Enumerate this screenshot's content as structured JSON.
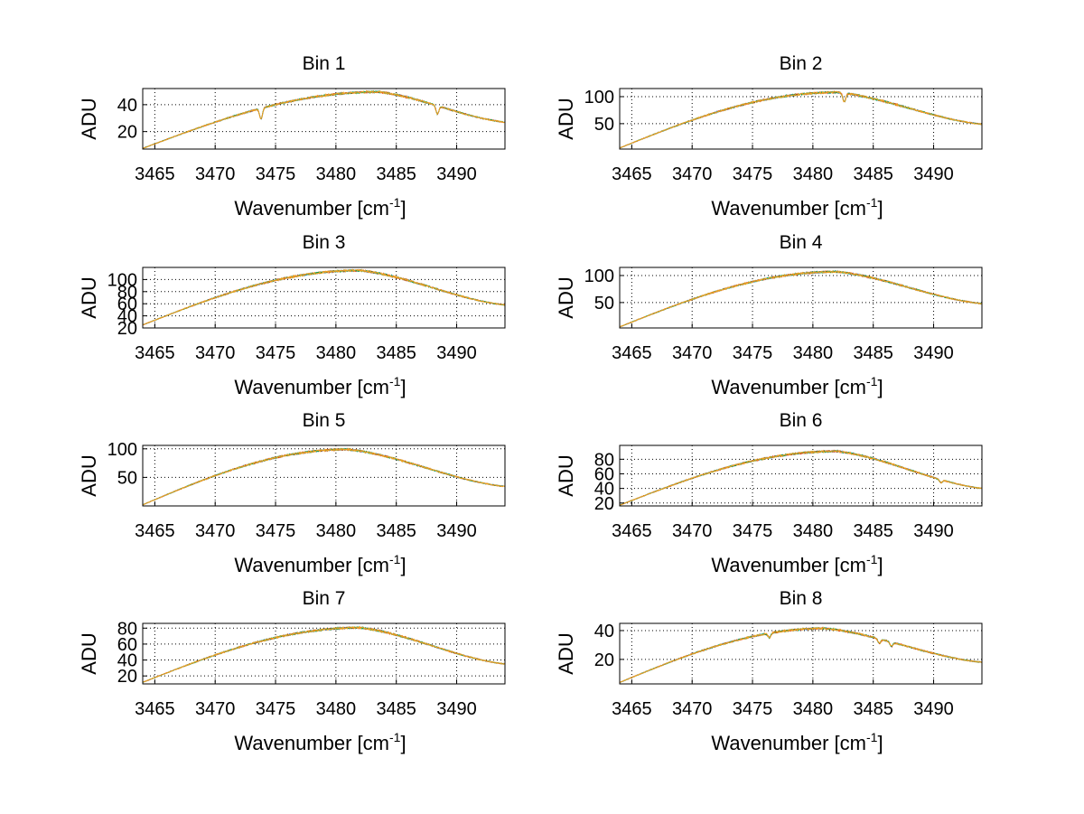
{
  "figure": {
    "background": "#ffffff",
    "series_colors": [
      "#1f7fd6",
      "#e32400",
      "#00a651",
      "#f0a020"
    ]
  },
  "chart_data": [
    {
      "type": "line",
      "title": "Bin 1",
      "xlabel": "Wavenumber [cm",
      "xlabel_sup": "-1",
      "xlabel_close": "]",
      "ylabel": "ADU",
      "xlim": [
        3464,
        3494
      ],
      "ylim": [
        7,
        52
      ],
      "xticks": [
        "3465",
        "3470",
        "3475",
        "3480",
        "3485",
        "3490"
      ],
      "xtick_values": [
        3465,
        3470,
        3475,
        3480,
        3485,
        3490
      ],
      "yticks": [
        "20",
        "40"
      ],
      "ytick_values": [
        20,
        40
      ],
      "grid": true,
      "profile": {
        "start": 7.5,
        "peak": 49.5,
        "peak_x": 3483.5,
        "end": 27
      },
      "dips": [
        {
          "x": 3473.8,
          "depth": 8
        },
        {
          "x": 3488.4,
          "depth": 6
        }
      ]
    },
    {
      "type": "line",
      "title": "Bin 2",
      "xlabel": "Wavenumber [cm",
      "xlabel_sup": "-1",
      "xlabel_close": "]",
      "ylabel": "ADU",
      "xlim": [
        3464,
        3494
      ],
      "ylim": [
        3,
        115
      ],
      "xticks": [
        "3465",
        "3470",
        "3475",
        "3480",
        "3485",
        "3490"
      ],
      "xtick_values": [
        3465,
        3470,
        3475,
        3480,
        3485,
        3490
      ],
      "yticks": [
        "50",
        "100"
      ],
      "ytick_values": [
        50,
        100
      ],
      "grid": true,
      "profile": {
        "start": 5,
        "peak": 108,
        "peak_x": 3482,
        "end": 49
      },
      "dips": [
        {
          "x": 3482.6,
          "depth": 16
        }
      ]
    },
    {
      "type": "line",
      "title": "Bin 3",
      "xlabel": "Wavenumber [cm",
      "xlabel_sup": "-1",
      "xlabel_close": "]",
      "ylabel": "ADU",
      "xlim": [
        3464,
        3494
      ],
      "ylim": [
        20,
        120
      ],
      "xticks": [
        "3465",
        "3470",
        "3475",
        "3480",
        "3485",
        "3490"
      ],
      "xtick_values": [
        3465,
        3470,
        3475,
        3480,
        3485,
        3490
      ],
      "yticks": [
        "20",
        "40",
        "60",
        "80",
        "100"
      ],
      "ytick_values": [
        20,
        40,
        60,
        80,
        100
      ],
      "grid": true,
      "profile": {
        "start": 25,
        "peak": 115,
        "peak_x": 3482,
        "end": 58
      },
      "dips": []
    },
    {
      "type": "line",
      "title": "Bin 4",
      "xlabel": "Wavenumber [cm",
      "xlabel_sup": "-1",
      "xlabel_close": "]",
      "ylabel": "ADU",
      "xlim": [
        3464,
        3494
      ],
      "ylim": [
        3,
        115
      ],
      "xticks": [
        "3465",
        "3470",
        "3475",
        "3480",
        "3485",
        "3490"
      ],
      "xtick_values": [
        3465,
        3470,
        3475,
        3480,
        3485,
        3490
      ],
      "yticks": [
        "50",
        "100"
      ],
      "ytick_values": [
        50,
        100
      ],
      "grid": true,
      "profile": {
        "start": 5,
        "peak": 107,
        "peak_x": 3482,
        "end": 48
      },
      "dips": []
    },
    {
      "type": "line",
      "title": "Bin 5",
      "xlabel": "Wavenumber [cm",
      "xlabel_sup": "-1",
      "xlabel_close": "]",
      "ylabel": "ADU",
      "xlim": [
        3464,
        3494
      ],
      "ylim": [
        0,
        106
      ],
      "xticks": [
        "3465",
        "3470",
        "3475",
        "3480",
        "3485",
        "3490"
      ],
      "xtick_values": [
        3465,
        3470,
        3475,
        3480,
        3485,
        3490
      ],
      "yticks": [
        "50",
        "100"
      ],
      "ytick_values": [
        50,
        100
      ],
      "grid": true,
      "profile": {
        "start": 2,
        "peak": 99,
        "peak_x": 3481,
        "end": 34
      },
      "dips": []
    },
    {
      "type": "line",
      "title": "Bin 6",
      "xlabel": "Wavenumber [cm",
      "xlabel_sup": "-1",
      "xlabel_close": "]",
      "ylabel": "ADU",
      "xlim": [
        3464,
        3494
      ],
      "ylim": [
        16,
        99
      ],
      "xticks": [
        "3465",
        "3470",
        "3475",
        "3480",
        "3485",
        "3490"
      ],
      "xtick_values": [
        3465,
        3470,
        3475,
        3480,
        3485,
        3490
      ],
      "yticks": [
        "20",
        "40",
        "60",
        "80"
      ],
      "ytick_values": [
        20,
        40,
        60,
        80
      ],
      "grid": true,
      "profile": {
        "start": 17,
        "peak": 91,
        "peak_x": 3482,
        "end": 40
      },
      "dips": [
        {
          "x": 3490.6,
          "depth": 4
        }
      ]
    },
    {
      "type": "line",
      "title": "Bin 7",
      "xlabel": "Wavenumber [cm",
      "xlabel_sup": "-1",
      "xlabel_close": "]",
      "ylabel": "ADU",
      "xlim": [
        3464,
        3494
      ],
      "ylim": [
        10,
        86
      ],
      "xticks": [
        "3465",
        "3470",
        "3475",
        "3480",
        "3485",
        "3490"
      ],
      "xtick_values": [
        3465,
        3470,
        3475,
        3480,
        3485,
        3490
      ],
      "yticks": [
        "20",
        "40",
        "60",
        "80"
      ],
      "ytick_values": [
        20,
        40,
        60,
        80
      ],
      "grid": true,
      "profile": {
        "start": 12,
        "peak": 80.5,
        "peak_x": 3482,
        "end": 35
      },
      "dips": []
    },
    {
      "type": "line",
      "title": "Bin 8",
      "xlabel": "Wavenumber [cm",
      "xlabel_sup": "-1",
      "xlabel_close": "]",
      "ylabel": "ADU",
      "xlim": [
        3464,
        3494
      ],
      "ylim": [
        3,
        45
      ],
      "xticks": [
        "3465",
        "3470",
        "3475",
        "3480",
        "3485",
        "3490"
      ],
      "xtick_values": [
        3465,
        3470,
        3475,
        3480,
        3485,
        3490
      ],
      "yticks": [
        "20",
        "40"
      ],
      "ytick_values": [
        20,
        40
      ],
      "grid": true,
      "profile": {
        "start": 4,
        "peak": 41.5,
        "peak_x": 3481,
        "end": 18
      },
      "dips": [
        {
          "x": 3476.4,
          "depth": 3
        },
        {
          "x": 3485.5,
          "depth": 3
        },
        {
          "x": 3486.5,
          "depth": 3
        }
      ]
    }
  ]
}
